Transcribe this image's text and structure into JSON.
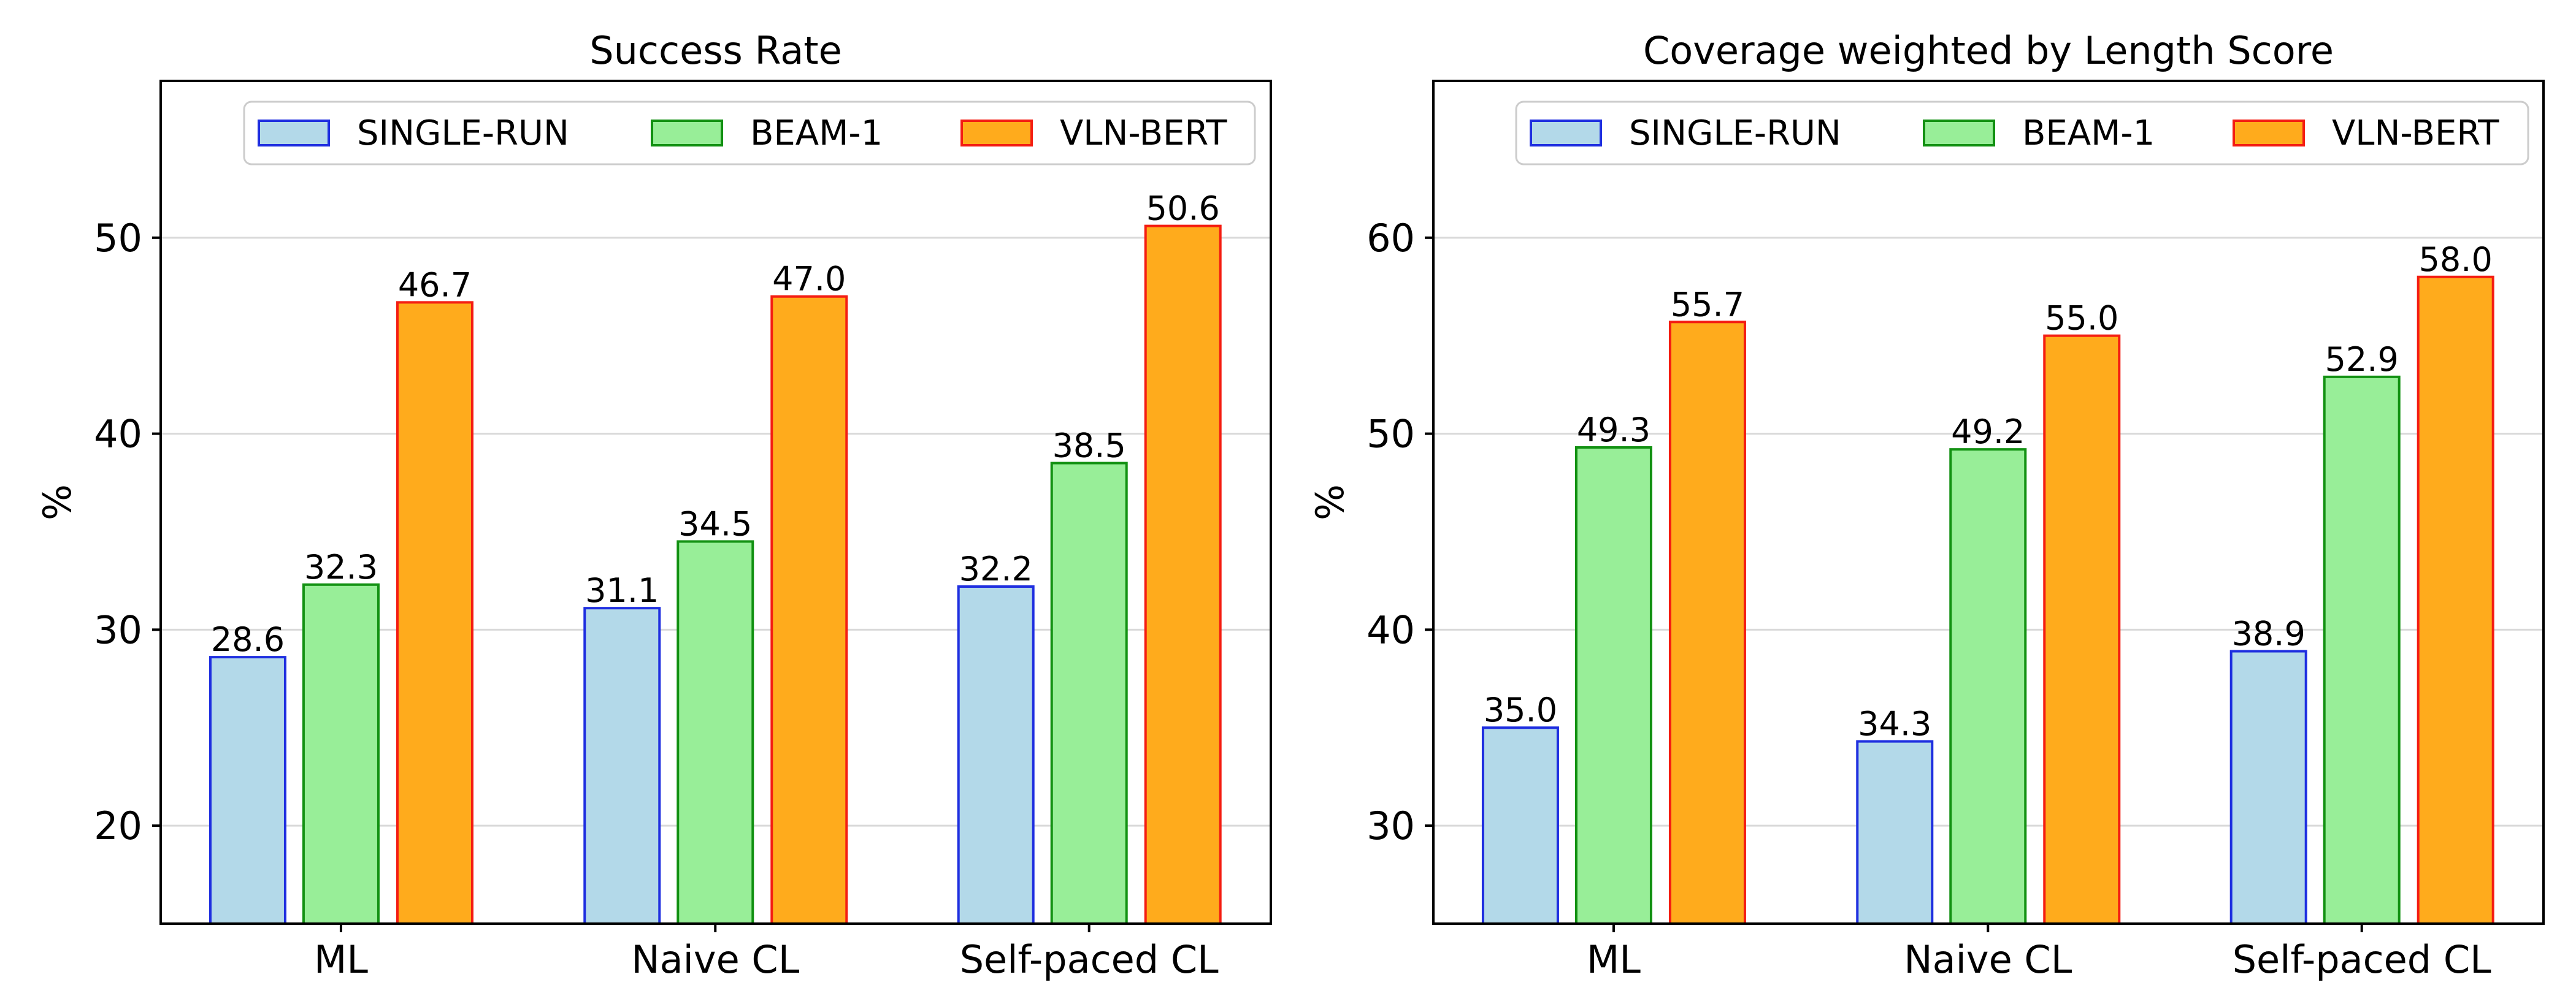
{
  "chart_data": [
    {
      "type": "bar",
      "title": "Success Rate",
      "xlabel": "",
      "ylabel": "%",
      "categories": [
        "ML",
        "Naive CL",
        "Self-paced CL"
      ],
      "ylim": [
        15,
        58
      ],
      "yticks": [
        20,
        30,
        40,
        50
      ],
      "grid": true,
      "legend_position": "top-right",
      "series": [
        {
          "name": "SINGLE-RUN",
          "values": [
            28.6,
            31.1,
            32.2
          ],
          "labels": [
            "28.6",
            "31.1",
            "32.2"
          ],
          "fill": "#b3d9e9",
          "stroke": "#1f2fe0"
        },
        {
          "name": "BEAM-1",
          "values": [
            32.3,
            34.5,
            38.5
          ],
          "labels": [
            "32.3",
            "34.5",
            "38.5"
          ],
          "fill": "#98ee98",
          "stroke": "#129112"
        },
        {
          "name": "VLN-BERT",
          "values": [
            46.7,
            47.0,
            50.6
          ],
          "labels": [
            "46.7",
            "47.0",
            "50.6"
          ],
          "fill": "#ffab1c",
          "stroke": "#f41d12"
        }
      ]
    },
    {
      "type": "bar",
      "title": "Coverage weighted by Length Score",
      "xlabel": "",
      "ylabel": "%",
      "categories": [
        "ML",
        "Naive CL",
        "Self-paced CL"
      ],
      "ylim": [
        25,
        68
      ],
      "yticks": [
        30,
        40,
        50,
        60
      ],
      "grid": true,
      "legend_position": "top-right",
      "series": [
        {
          "name": "SINGLE-RUN",
          "values": [
            35.0,
            34.3,
            38.9
          ],
          "labels": [
            "35.0",
            "34.3",
            "38.9"
          ],
          "fill": "#b3d9e9",
          "stroke": "#1f2fe0"
        },
        {
          "name": "BEAM-1",
          "values": [
            49.3,
            49.2,
            52.9
          ],
          "labels": [
            "49.3",
            "49.2",
            "52.9"
          ],
          "fill": "#98ee98",
          "stroke": "#129112"
        },
        {
          "name": "VLN-BERT",
          "values": [
            55.7,
            55.0,
            58.0
          ],
          "labels": [
            "55.7",
            "55.0",
            "58.0"
          ],
          "fill": "#ffab1c",
          "stroke": "#f41d12"
        }
      ]
    }
  ]
}
